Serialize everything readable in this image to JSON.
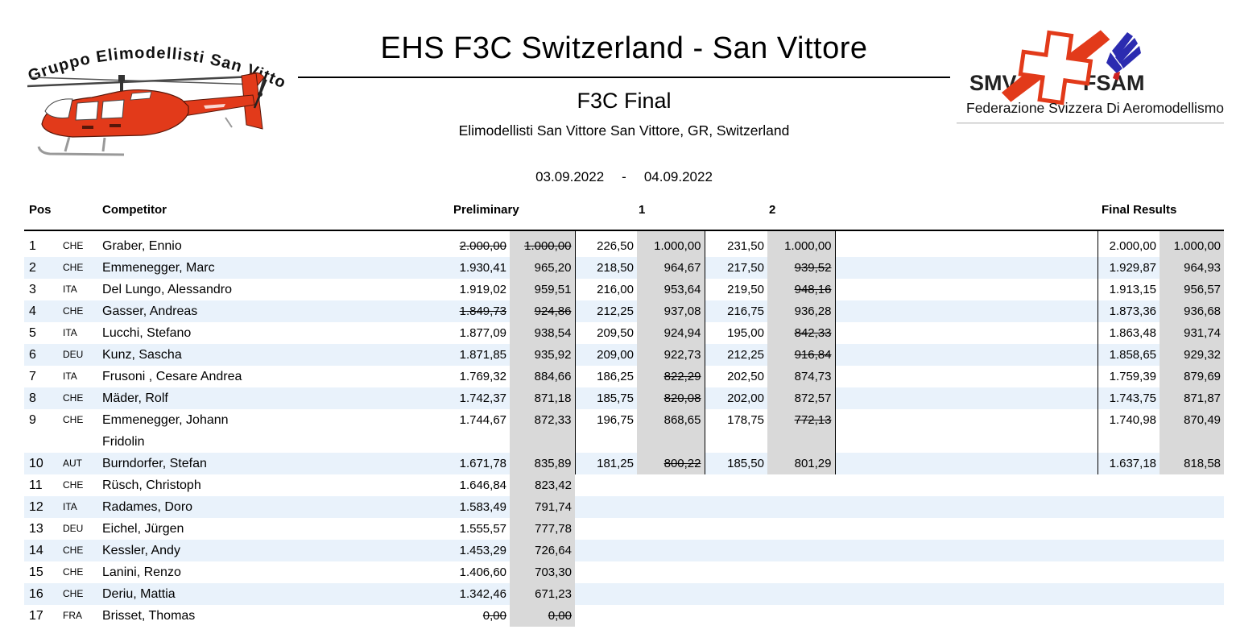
{
  "header": {
    "left_logo": {
      "icon": "red-helicopter-icon",
      "arc_text": "Gruppo Elimodellisti San Vittore"
    },
    "title": "EHS F3C Switzerland - San Vittore",
    "subtitle": "F3C Final",
    "location": "Elimodellisti San Vittore San Vittore, GR, Switzerland",
    "date_from": "03.09.2022",
    "date_separator": "-",
    "date_to": "04.09.2022",
    "right_logo": {
      "smv_label": "SMV",
      "fsam_label": "FSAM",
      "subtitle": "Federazione Svizzera Di Aeromodellismo",
      "icons": [
        "swiss-cross-rotor-icon",
        "blue-bird-icon"
      ]
    }
  },
  "colors": {
    "accent_red": "#e23a1a",
    "row_alt_blue": "#e9f2fb",
    "score_cell_gray": "#d9d9d9",
    "logo_blue": "#2b2bb0"
  },
  "table": {
    "columns": {
      "pos": "Pos",
      "competitor": "Competitor",
      "preliminary": "Preliminary",
      "round1": "1",
      "round2": "2",
      "final": "Final Results"
    },
    "value_order": [
      "prelim_raw",
      "prelim_norm",
      "round1_raw",
      "round1_norm",
      "round2_raw",
      "round2_norm",
      "final_raw",
      "final_norm"
    ],
    "rows": [
      {
        "pos": "1",
        "country": "CHE",
        "name": "Graber, Ennio",
        "values": [
          "2.000,00",
          "1.000,00",
          "226,50",
          "1.000,00",
          "231,50",
          "1.000,00",
          "2.000,00",
          "1.000,00"
        ],
        "struck": [
          0,
          1
        ]
      },
      {
        "pos": "2",
        "country": "CHE",
        "name": "Emmenegger, Marc",
        "values": [
          "1.930,41",
          "965,20",
          "218,50",
          "964,67",
          "217,50",
          "939,52",
          "1.929,87",
          "964,93"
        ],
        "struck": [
          5
        ]
      },
      {
        "pos": "3",
        "country": "ITA",
        "name": "Del Lungo, Alessandro",
        "values": [
          "1.919,02",
          "959,51",
          "216,00",
          "953,64",
          "219,50",
          "948,16",
          "1.913,15",
          "956,57"
        ],
        "struck": [
          5
        ]
      },
      {
        "pos": "4",
        "country": "CHE",
        "name": "Gasser, Andreas",
        "values": [
          "1.849,73",
          "924,86",
          "212,25",
          "937,08",
          "216,75",
          "936,28",
          "1.873,36",
          "936,68"
        ],
        "struck": [
          0,
          1
        ]
      },
      {
        "pos": "5",
        "country": "ITA",
        "name": "Lucchi, Stefano",
        "values": [
          "1.877,09",
          "938,54",
          "209,50",
          "924,94",
          "195,00",
          "842,33",
          "1.863,48",
          "931,74"
        ],
        "struck": [
          5
        ]
      },
      {
        "pos": "6",
        "country": "DEU",
        "name": "Kunz, Sascha",
        "values": [
          "1.871,85",
          "935,92",
          "209,00",
          "922,73",
          "212,25",
          "916,84",
          "1.858,65",
          "929,32"
        ],
        "struck": [
          5
        ]
      },
      {
        "pos": "7",
        "country": "ITA",
        "name": "Frusoni , Cesare Andrea",
        "values": [
          "1.769,32",
          "884,66",
          "186,25",
          "822,29",
          "202,50",
          "874,73",
          "1.759,39",
          "879,69"
        ],
        "struck": [
          3
        ]
      },
      {
        "pos": "8",
        "country": "CHE",
        "name": "Mäder, Rolf",
        "values": [
          "1.742,37",
          "871,18",
          "185,75",
          "820,08",
          "202,00",
          "872,57",
          "1.743,75",
          "871,87"
        ],
        "struck": [
          3
        ]
      },
      {
        "pos": "9",
        "country": "CHE",
        "name": "Emmenegger, Johann\nFridolin",
        "values": [
          "1.744,67",
          "872,33",
          "196,75",
          "868,65",
          "178,75",
          "772,13",
          "1.740,98",
          "870,49"
        ],
        "struck": [
          5
        ]
      },
      {
        "pos": "10",
        "country": "AUT",
        "name": "Burndorfer, Stefan",
        "values": [
          "1.671,78",
          "835,89",
          "181,25",
          "800,22",
          "185,50",
          "801,29",
          "1.637,18",
          "818,58"
        ],
        "struck": [
          3
        ]
      },
      {
        "pos": "11",
        "country": "CHE",
        "name": "Rüsch, Christoph",
        "values": [
          "1.646,84",
          "823,42",
          null,
          null,
          null,
          null,
          null,
          null
        ],
        "struck": []
      },
      {
        "pos": "12",
        "country": "ITA",
        "name": "Radames, Doro",
        "values": [
          "1.583,49",
          "791,74",
          null,
          null,
          null,
          null,
          null,
          null
        ],
        "struck": []
      },
      {
        "pos": "13",
        "country": "DEU",
        "name": "Eichel, Jürgen",
        "values": [
          "1.555,57",
          "777,78",
          null,
          null,
          null,
          null,
          null,
          null
        ],
        "struck": []
      },
      {
        "pos": "14",
        "country": "CHE",
        "name": "Kessler, Andy",
        "values": [
          "1.453,29",
          "726,64",
          null,
          null,
          null,
          null,
          null,
          null
        ],
        "struck": []
      },
      {
        "pos": "15",
        "country": "CHE",
        "name": "Lanini, Renzo",
        "values": [
          "1.406,60",
          "703,30",
          null,
          null,
          null,
          null,
          null,
          null
        ],
        "struck": []
      },
      {
        "pos": "16",
        "country": "CHE",
        "name": "Deriu, Mattia",
        "values": [
          "1.342,46",
          "671,23",
          null,
          null,
          null,
          null,
          null,
          null
        ],
        "struck": []
      },
      {
        "pos": "17",
        "country": "FRA",
        "name": "Brisset, Thomas",
        "values": [
          "0,00",
          "0,00",
          null,
          null,
          null,
          null,
          null,
          null
        ],
        "struck": [
          0,
          1
        ]
      }
    ]
  }
}
